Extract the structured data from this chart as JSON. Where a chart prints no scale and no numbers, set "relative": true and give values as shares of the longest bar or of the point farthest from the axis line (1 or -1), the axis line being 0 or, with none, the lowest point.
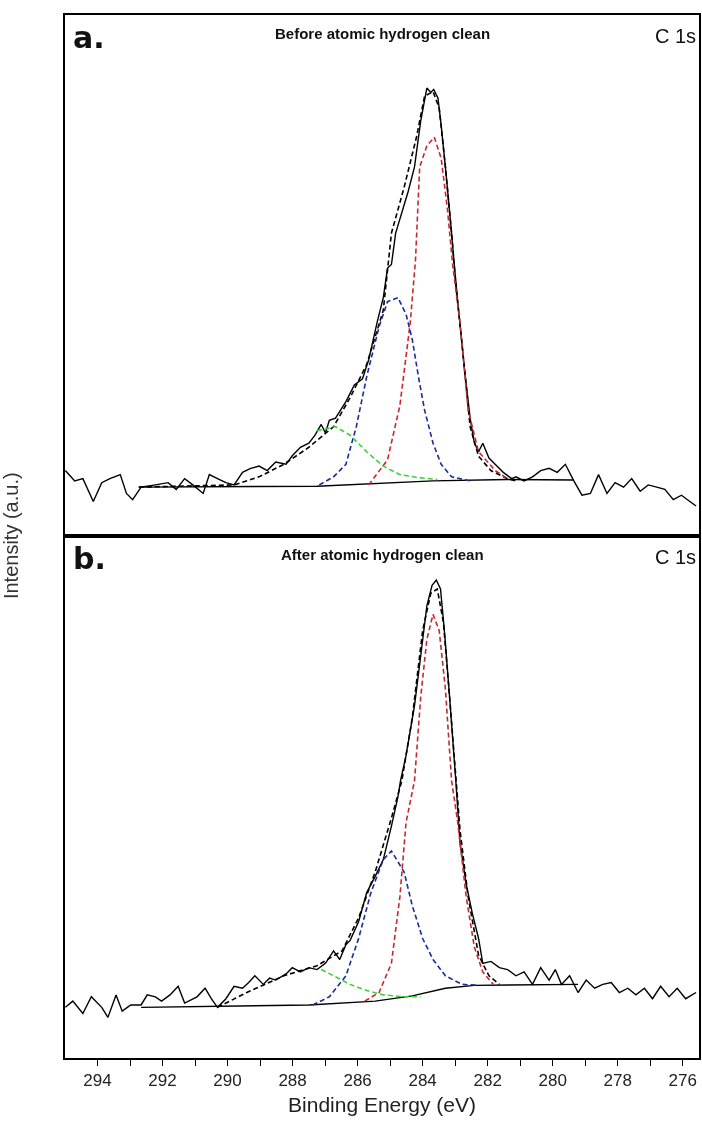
{
  "chart_data": [
    {
      "type": "line",
      "title": "Before atomic hydrogen clean",
      "ylabel": "Intensity (a.u.)",
      "annotations": [
        "a.",
        "C 1s"
      ],
      "relative": true,
      "xlim": [
        295.0,
        275.5
      ],
      "tick_labels": false,
      "grid": false,
      "marker": "none",
      "series": [
        {
          "color": "#000000",
          "line_style": "solid",
          "x": [
            294.99,
            294.7,
            294.45,
            294.13,
            293.87,
            293.62,
            293.3,
            293.11,
            292.92,
            292.66,
            292.22,
            291.83,
            291.58,
            291.32,
            291.07,
            290.75,
            290.56,
            290.31,
            290.05,
            289.8,
            289.54,
            289.29,
            289.03,
            288.78,
            288.52,
            288.2,
            288.01,
            287.76,
            287.5,
            287.31,
            287.12,
            286.99,
            286.87,
            286.68,
            286.36,
            286.1,
            285.85,
            285.66,
            285.4,
            285.21,
            285.08,
            284.96,
            284.83,
            284.45,
            284.25,
            284.06,
            283.87,
            283.75,
            283.66,
            283.53,
            283.43,
            283.3,
            283.11,
            283.04,
            282.92,
            282.73,
            282.54,
            282.41,
            282.28,
            282.15,
            281.96,
            281.77,
            281.52,
            281.26,
            281.13,
            280.88,
            280.62,
            280.37,
            280.11,
            279.86,
            279.61,
            279.35,
            279.1,
            278.84,
            278.59,
            278.33,
            278.08,
            277.82,
            277.57,
            277.31,
            277.06,
            276.8,
            276.55,
            276.29,
            276.04,
            275.78,
            275.59
          ],
          "values": [
            0.146,
            0.123,
            0.128,
            0.077,
            0.119,
            0.128,
            0.137,
            0.095,
            0.081,
            0.109,
            0.114,
            0.119,
            0.104,
            0.128,
            0.114,
            0.095,
            0.137,
            0.128,
            0.119,
            0.114,
            0.142,
            0.151,
            0.156,
            0.146,
            0.165,
            0.16,
            0.179,
            0.198,
            0.207,
            0.225,
            0.249,
            0.23,
            0.258,
            0.263,
            0.3,
            0.337,
            0.351,
            0.393,
            0.477,
            0.532,
            0.598,
            0.606,
            0.676,
            0.768,
            0.824,
            0.926,
            1.0,
            0.99,
            0.997,
            0.978,
            0.917,
            0.824,
            0.676,
            0.616,
            0.523,
            0.384,
            0.263,
            0.208,
            0.188,
            0.207,
            0.174,
            0.16,
            0.142,
            0.128,
            0.132,
            0.123,
            0.132,
            0.146,
            0.151,
            0.142,
            0.16,
            0.123,
            0.091,
            0.095,
            0.137,
            0.095,
            0.119,
            0.109,
            0.128,
            0.1,
            0.114,
            0.109,
            0.104,
            0.081,
            0.091,
            0.077,
            0.067
          ]
        },
        {
          "color": "#000000",
          "line_style": "dashed",
          "x": [
            292.73,
            289.8,
            289.03,
            288.27,
            287.5,
            286.74,
            286.23,
            285.72,
            285.21,
            284.96,
            284.57,
            284.19,
            283.94,
            283.68,
            283.49,
            283.3,
            283.11,
            282.98,
            282.79,
            282.54,
            282.28,
            281.9,
            281.39,
            281.13
          ],
          "values": [
            0.109,
            0.114,
            0.132,
            0.16,
            0.198,
            0.244,
            0.309,
            0.383,
            0.504,
            0.676,
            0.778,
            0.89,
            0.982,
            0.992,
            0.955,
            0.824,
            0.676,
            0.56,
            0.43,
            0.244,
            0.178,
            0.146,
            0.128,
            0.123
          ]
        },
        {
          "color": "#000000",
          "line_style": "solid",
          "x": [
            292.73,
            287.25,
            283.68,
            281.39,
            279.35
          ],
          "values": [
            0.109,
            0.111,
            0.123,
            0.126,
            0.125
          ]
        },
        {
          "color": "#c8282d",
          "line_style": "dashed",
          "x": [
            285.66,
            285.08,
            284.7,
            284.38,
            284.22,
            284.09,
            283.87,
            283.64,
            283.43,
            283.24,
            283.07,
            282.85,
            282.6,
            282.28,
            281.77,
            281.39
          ],
          "values": [
            0.114,
            0.17,
            0.291,
            0.477,
            0.616,
            0.824,
            0.871,
            0.89,
            0.843,
            0.731,
            0.601,
            0.477,
            0.281,
            0.188,
            0.146,
            0.128
          ]
        },
        {
          "color": "#1c2a9a",
          "line_style": "dashed",
          "x": [
            287.18,
            286.74,
            286.36,
            286.04,
            285.72,
            285.34,
            285.08,
            284.76,
            284.51,
            284.32,
            284.13,
            283.94,
            283.68,
            283.43,
            283.11,
            282.54
          ],
          "values": [
            0.114,
            0.132,
            0.16,
            0.244,
            0.356,
            0.467,
            0.523,
            0.532,
            0.495,
            0.439,
            0.356,
            0.281,
            0.207,
            0.16,
            0.132,
            0.123
          ]
        },
        {
          "color": "#3cd23c",
          "line_style": "dashed",
          "x": [
            287.25,
            286.68,
            286.23,
            285.72,
            285.21,
            284.7,
            284.19,
            283.55
          ],
          "values": [
            0.235,
            0.244,
            0.225,
            0.188,
            0.156,
            0.137,
            0.131,
            0.126
          ]
        }
      ]
    },
    {
      "type": "line",
      "title": "After atomic hydrogen clean",
      "xlabel": "Binding Energy (eV)",
      "annotations": [
        "b.",
        "C 1s"
      ],
      "relative": true,
      "xlim": [
        295.0,
        275.5
      ],
      "tick_labels": "x",
      "grid": false,
      "marker": "none",
      "xticks": [
        294,
        {
          "value": 293,
          "label": null
        },
        292,
        {
          "value": 291,
          "label": null
        },
        290,
        {
          "value": 289,
          "label": null
        },
        288,
        {
          "value": 287,
          "label": null
        },
        286,
        {
          "value": 285,
          "label": null
        },
        284,
        {
          "value": 283,
          "label": null
        },
        282,
        {
          "value": 281,
          "label": null
        },
        280,
        {
          "value": 279,
          "label": null
        },
        278,
        {
          "value": 277,
          "label": null
        },
        276
      ],
      "series": [
        {
          "color": "#000000",
          "line_style": "solid",
          "x": [
            294.99,
            294.76,
            294.45,
            294.19,
            293.87,
            293.68,
            293.43,
            293.24,
            292.98,
            292.66,
            292.47,
            292.22,
            292.03,
            291.77,
            291.52,
            291.32,
            290.94,
            290.69,
            290.5,
            290.31,
            290.05,
            289.8,
            289.54,
            289.35,
            289.16,
            288.9,
            288.71,
            288.52,
            288.2,
            288.01,
            287.76,
            287.5,
            287.25,
            286.99,
            286.74,
            286.55,
            286.36,
            286.23,
            285.97,
            285.72,
            285.46,
            285.21,
            284.96,
            284.76,
            284.68,
            284.51,
            284.25,
            284.06,
            283.87,
            283.71,
            283.58,
            283.45,
            283.32,
            283.17,
            282.98,
            282.85,
            282.66,
            282.47,
            282.28,
            282.15,
            281.9,
            281.64,
            281.39,
            281.13,
            280.88,
            280.62,
            280.37,
            280.11,
            279.92,
            279.73,
            279.48,
            279.22,
            278.97,
            278.71,
            278.46,
            278.2,
            277.95,
            277.69,
            277.44,
            277.18,
            276.93,
            276.68,
            276.42,
            276.17,
            275.91,
            275.59
          ],
          "values": [
            0.106,
            0.119,
            0.093,
            0.128,
            0.106,
            0.085,
            0.132,
            0.098,
            0.111,
            0.111,
            0.132,
            0.128,
            0.119,
            0.132,
            0.15,
            0.115,
            0.128,
            0.146,
            0.124,
            0.106,
            0.124,
            0.15,
            0.146,
            0.158,
            0.172,
            0.154,
            0.167,
            0.163,
            0.176,
            0.189,
            0.18,
            0.189,
            0.185,
            0.198,
            0.224,
            0.206,
            0.237,
            0.246,
            0.285,
            0.346,
            0.38,
            0.415,
            0.485,
            0.546,
            0.58,
            0.633,
            0.737,
            0.841,
            0.946,
            0.989,
            1.0,
            0.981,
            0.885,
            0.754,
            0.58,
            0.45,
            0.363,
            0.302,
            0.25,
            0.198,
            0.202,
            0.189,
            0.185,
            0.172,
            0.18,
            0.154,
            0.189,
            0.163,
            0.185,
            0.154,
            0.172,
            0.137,
            0.163,
            0.146,
            0.154,
            0.158,
            0.137,
            0.146,
            0.132,
            0.146,
            0.124,
            0.15,
            0.128,
            0.146,
            0.124,
            0.137
          ]
        },
        {
          "color": "#000000",
          "line_style": "dashed",
          "x": [
            290.31,
            289.41,
            288.27,
            287.25,
            286.48,
            285.97,
            285.46,
            284.96,
            284.64,
            284.32,
            284.0,
            283.75,
            283.55,
            283.36,
            283.17,
            282.85,
            282.6,
            282.28,
            281.96,
            281.64
          ],
          "values": [
            0.106,
            0.137,
            0.172,
            0.193,
            0.224,
            0.293,
            0.389,
            0.502,
            0.58,
            0.711,
            0.894,
            0.972,
            0.981,
            0.911,
            0.754,
            0.476,
            0.337,
            0.215,
            0.172,
            0.154
          ]
        },
        {
          "color": "#000000",
          "line_style": "solid",
          "x": [
            292.66,
            287.5,
            285.46,
            284.32,
            283.3,
            282.41,
            279.22
          ],
          "values": [
            0.106,
            0.111,
            0.119,
            0.13,
            0.146,
            0.152,
            0.154
          ]
        },
        {
          "color": "#c8282d",
          "line_style": "dashed",
          "x": [
            285.78,
            285.34,
            284.96,
            284.7,
            284.51,
            284.25,
            284.06,
            283.87,
            283.68,
            283.49,
            283.3,
            283.11,
            282.92,
            282.66,
            282.41,
            282.15,
            281.83
          ],
          "values": [
            0.119,
            0.137,
            0.198,
            0.337,
            0.493,
            0.58,
            0.754,
            0.876,
            0.928,
            0.894,
            0.772,
            0.58,
            0.493,
            0.337,
            0.232,
            0.18,
            0.154
          ]
        },
        {
          "color": "#1c2a9a",
          "line_style": "dashed",
          "x": [
            287.38,
            286.87,
            286.36,
            285.97,
            285.59,
            285.21,
            284.96,
            284.57,
            284.32,
            284.0,
            283.68,
            283.3,
            282.79,
            282.28
          ],
          "values": [
            0.111,
            0.128,
            0.172,
            0.25,
            0.346,
            0.415,
            0.433,
            0.389,
            0.319,
            0.25,
            0.206,
            0.172,
            0.154,
            0.152
          ]
        },
        {
          "color": "#3cd23c",
          "line_style": "dashed",
          "x": [
            287.12,
            286.74,
            286.23,
            285.72,
            285.21,
            284.57,
            284.06
          ],
          "values": [
            0.185,
            0.172,
            0.154,
            0.141,
            0.132,
            0.128,
            0.128
          ]
        }
      ]
    }
  ]
}
